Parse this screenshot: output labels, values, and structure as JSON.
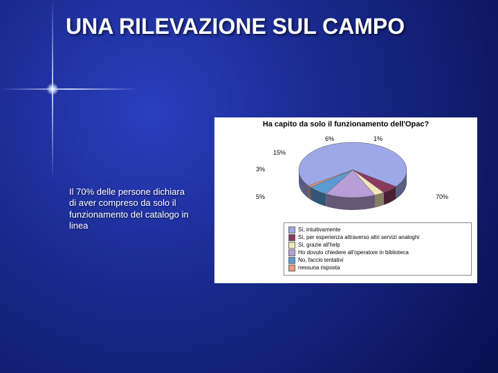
{
  "slide": {
    "title": "UNA RILEVAZIONE SUL CAMPO",
    "body_text": "Il 70% delle persone dichiara di aver compreso da solo il funzionamento del catalogo in linea",
    "background_gradient": [
      "#2a3fbf",
      "#1a2a8f",
      "#081050"
    ]
  },
  "chart": {
    "type": "pie-3d",
    "title": "Ha capito da solo il funzionamento dell'Opac?",
    "background_color": "#ffffff",
    "title_fontsize": 11,
    "label_fontsize": 9,
    "legend_fontsize": 8,
    "slices": [
      {
        "label": "Sì, intuitivamente",
        "pct": 70,
        "color": "#9ea8e8",
        "data_label": "70%"
      },
      {
        "label": "Sì, per esperienza attraverso altri servizi analoghi",
        "pct": 5,
        "color": "#8b3a5e",
        "data_label": "5%"
      },
      {
        "label": "Sì, grazie all'help",
        "pct": 3,
        "color": "#f2e7b8",
        "data_label": "3%"
      },
      {
        "label": "Ho dovuto chiedere all'operatore in biblioteca",
        "pct": 15,
        "color": "#b89ed6",
        "data_label": "15%"
      },
      {
        "label": "No, faccio tentativi",
        "pct": 6,
        "color": "#5a9bd4",
        "data_label": "6%"
      },
      {
        "label": "nessuna risposta",
        "pct": 1,
        "color": "#e89a7a",
        "data_label": "1%"
      }
    ],
    "side_color": "#6a76b8",
    "side_color_dark": "#5c2844"
  }
}
